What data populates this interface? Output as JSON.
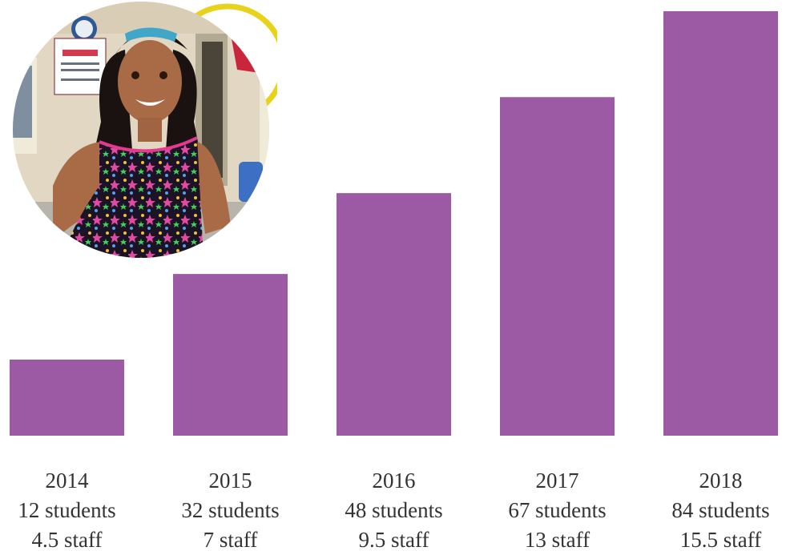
{
  "colors": {
    "bar": "#9c5aa5",
    "ring": "#e8d21c",
    "text": "#333333"
  },
  "image": {
    "description_icon": "photo-of-girl-in-swimsuit-icon"
  },
  "chart_data": {
    "type": "bar",
    "categories": [
      "2014",
      "2015",
      "2016",
      "2017",
      "2018"
    ],
    "series": [
      {
        "name": "students",
        "values": [
          12,
          32,
          48,
          67,
          84
        ]
      },
      {
        "name": "staff",
        "values": [
          4.5,
          7,
          9.5,
          13,
          15.5
        ]
      }
    ],
    "plotted_series": "students",
    "title": "",
    "xlabel": "",
    "ylabel": "",
    "labels": [
      {
        "year": "2014",
        "students": "12 students",
        "staff": "4.5 staff"
      },
      {
        "year": "2015",
        "students": "32 students",
        "staff": "7 staff"
      },
      {
        "year": "2016",
        "students": "48 students",
        "staff": "9.5 staff"
      },
      {
        "year": "2017",
        "students": "67 students",
        "staff": "13 staff"
      },
      {
        "year": "2018",
        "students": "84 students",
        "staff": "15.5 staff"
      }
    ]
  }
}
